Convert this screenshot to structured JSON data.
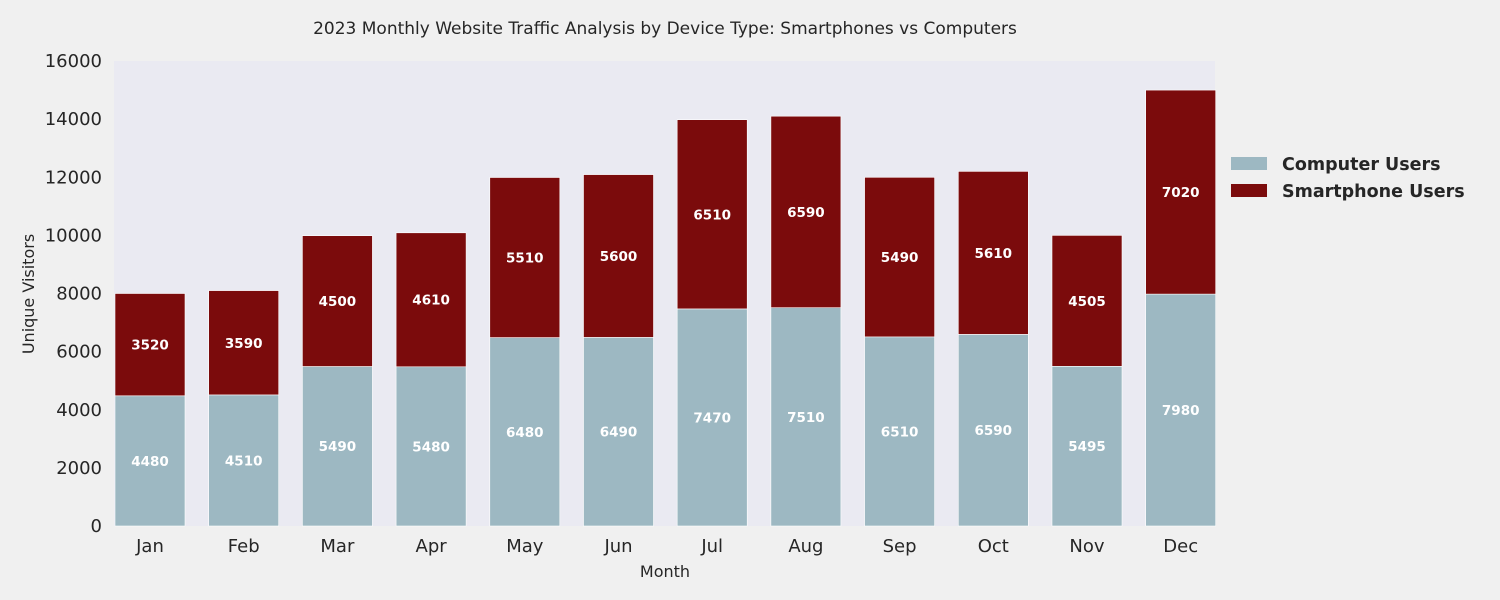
{
  "chart_data": {
    "type": "bar",
    "stacked": true,
    "title": "2023 Monthly Website Traffic Analysis by Device Type: Smartphones vs Computers",
    "xlabel": "Month",
    "ylabel": "Unique Visitors",
    "ylim": [
      0,
      16000
    ],
    "yticks": [
      0,
      2000,
      4000,
      6000,
      8000,
      10000,
      12000,
      14000,
      16000
    ],
    "grid": false,
    "legend_position": "right",
    "categories": [
      "Jan",
      "Feb",
      "Mar",
      "Apr",
      "May",
      "Jun",
      "Jul",
      "Aug",
      "Sep",
      "Oct",
      "Nov",
      "Dec"
    ],
    "series": [
      {
        "name": "Computer Users",
        "color": "#9db8c2",
        "values": [
          4480,
          4510,
          5490,
          5480,
          6480,
          6490,
          7470,
          7510,
          6510,
          6590,
          5495,
          7980
        ]
      },
      {
        "name": "Smartphone Users",
        "color": "#7b0b0c",
        "values": [
          3520,
          3590,
          4500,
          4610,
          5510,
          5600,
          6510,
          6590,
          5490,
          5610,
          4505,
          7020
        ]
      }
    ]
  },
  "colors": {
    "page_background": "#f0f0f0",
    "plot_background": "#eaeaf2"
  }
}
